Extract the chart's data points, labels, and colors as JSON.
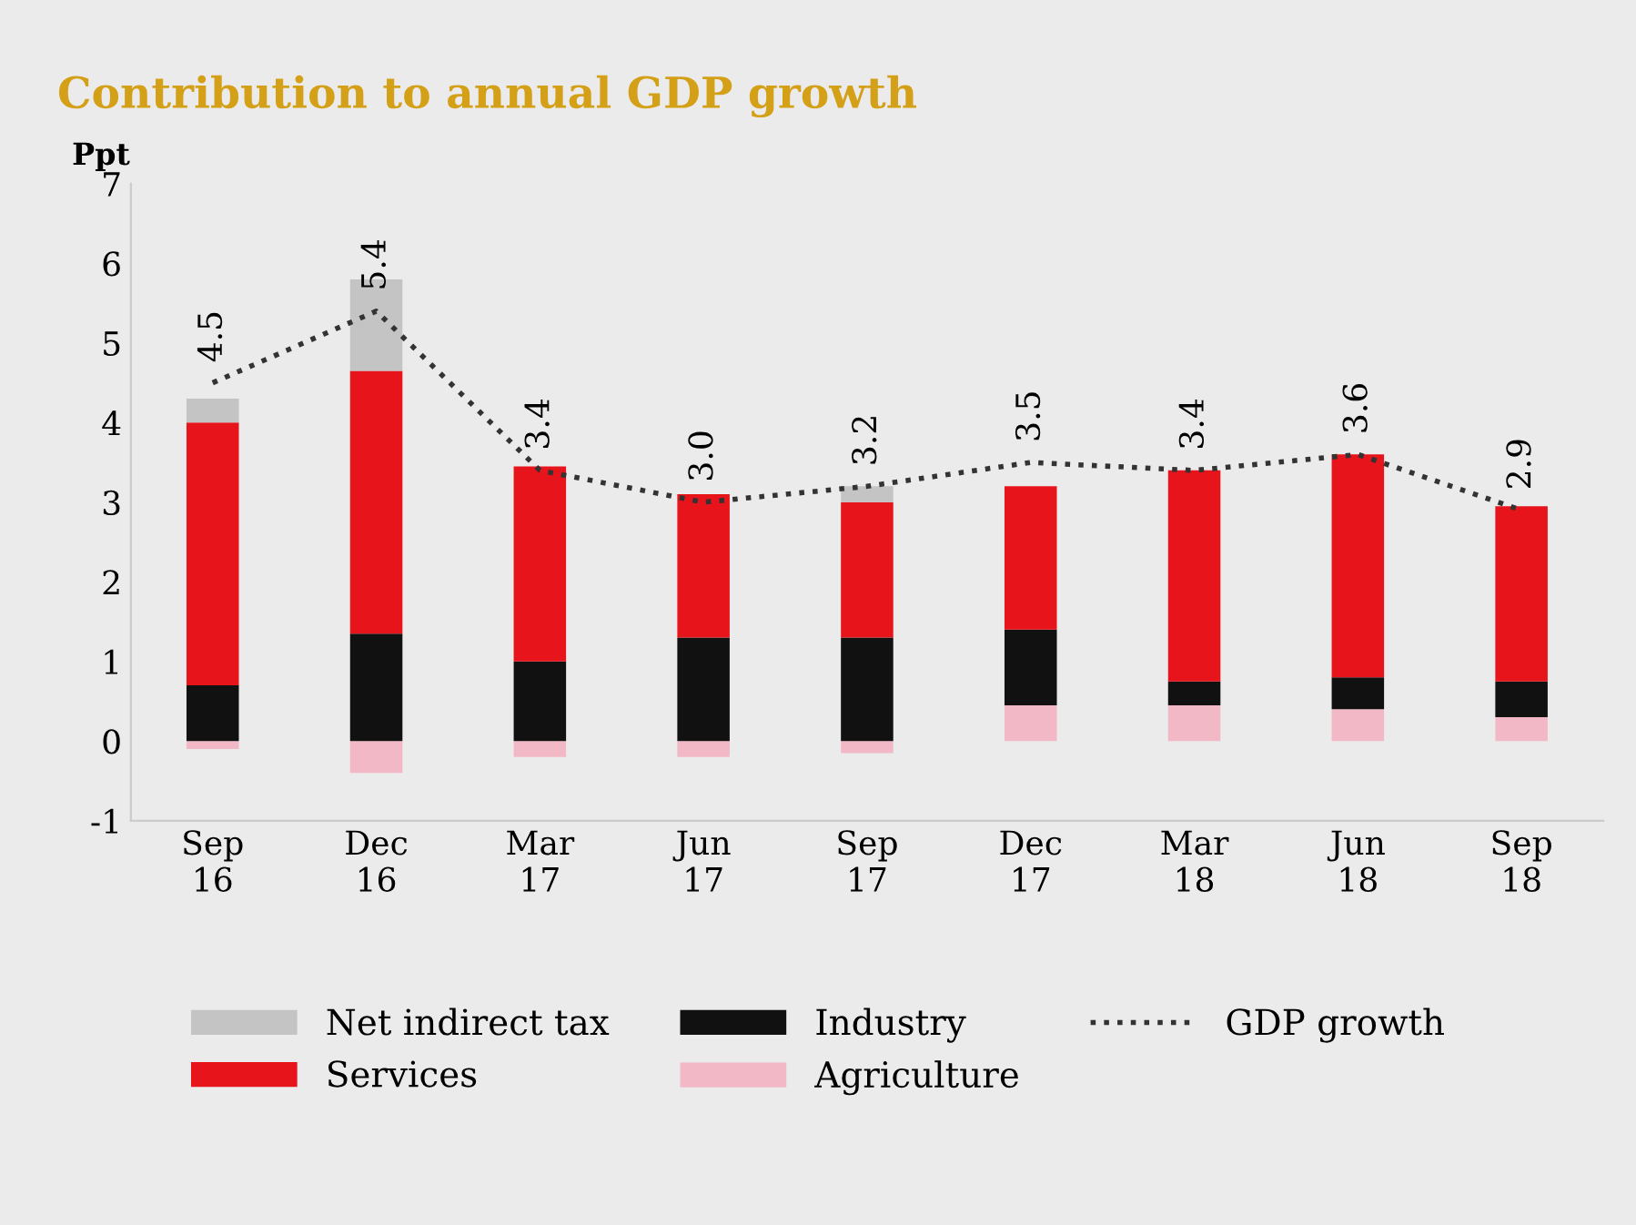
{
  "chart_data": {
    "type": "bar",
    "title": "Contribution to annual GDP growth",
    "ylabel": "Ppt",
    "stacked": true,
    "categories": [
      "Sep\n16",
      "Dec\n16",
      "Mar\n17",
      "Jun\n17",
      "Sep\n17",
      "Dec\n17",
      "Mar\n18",
      "Jun\n18",
      "Sep\n18"
    ],
    "series": [
      {
        "name": "Agriculture",
        "color": "#f2b8c6",
        "values": [
          -0.1,
          -0.4,
          -0.2,
          -0.2,
          -0.15,
          0.45,
          0.45,
          0.4,
          0.3
        ]
      },
      {
        "name": "Industry",
        "color": "#111111",
        "values": [
          0.7,
          1.35,
          1.0,
          1.3,
          1.3,
          0.95,
          0.3,
          0.4,
          0.45
        ]
      },
      {
        "name": "Services",
        "color": "#e8141b",
        "values": [
          3.3,
          3.3,
          2.45,
          1.8,
          1.7,
          1.8,
          2.65,
          2.8,
          2.2
        ]
      },
      {
        "name": "Net indirect tax",
        "color": "#c4c4c4",
        "values": [
          0.3,
          1.15,
          0,
          0,
          0.2,
          0,
          0,
          0,
          0
        ]
      },
      {
        "name": "GDP growth",
        "type": "line",
        "color": "#333333",
        "line_style": "dotted",
        "values": [
          4.5,
          5.4,
          3.4,
          3.0,
          3.2,
          3.5,
          3.4,
          3.6,
          2.9
        ],
        "value_labels": [
          "4.5",
          "5.4",
          "3.4",
          "3.0",
          "3.2",
          "3.5",
          "3.4",
          "3.6",
          "2.9"
        ]
      }
    ],
    "ylim": [
      -1,
      7
    ],
    "yticks": [
      -1,
      0,
      1,
      2,
      3,
      4,
      5,
      6,
      7
    ],
    "grid": false,
    "legend": "bottom"
  }
}
